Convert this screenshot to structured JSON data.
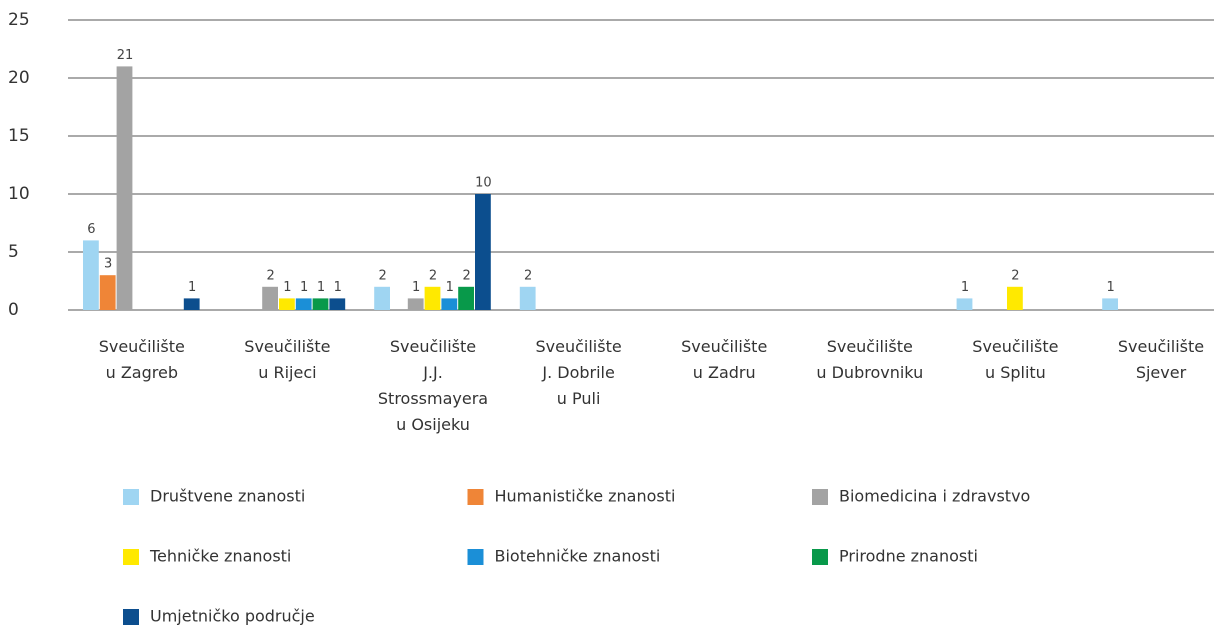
{
  "chart_data": {
    "type": "bar",
    "categories": [
      [
        "Sveučilište",
        "u Zagreb"
      ],
      [
        "Sveučilište",
        "u Rijeci"
      ],
      [
        "Sveučilište",
        "J.J.",
        "Strossmayera",
        "u Osijeku"
      ],
      [
        "Sveučilište",
        "J. Dobrile",
        "u Puli"
      ],
      [
        "Sveučilište",
        "u Zadru"
      ],
      [
        "Sveučilište",
        "u Dubrovniku"
      ],
      [
        "Sveučilište",
        "u Splitu"
      ],
      [
        "Sveučilište",
        "Sjever"
      ]
    ],
    "series": [
      {
        "name": "Društvene znanosti",
        "color": "#9fd5f2",
        "values": [
          6,
          null,
          2,
          2,
          null,
          null,
          1,
          1
        ]
      },
      {
        "name": "Humanističke znanosti",
        "color": "#ef8537",
        "values": [
          3,
          null,
          null,
          null,
          null,
          null,
          null,
          null
        ]
      },
      {
        "name": "Biomedicina i zdravstvo",
        "color": "#a3a3a3",
        "values": [
          21,
          2,
          1,
          null,
          null,
          null,
          null,
          null
        ]
      },
      {
        "name": "Tehničke znanosti",
        "color": "#ffe900",
        "values": [
          null,
          1,
          2,
          null,
          null,
          null,
          2,
          null
        ]
      },
      {
        "name": "Biotehničke znanosti",
        "color": "#1b8fd7",
        "values": [
          null,
          1,
          1,
          null,
          null,
          null,
          null,
          null
        ]
      },
      {
        "name": "Prirodne znanosti",
        "color": "#08994a",
        "values": [
          null,
          1,
          2,
          null,
          null,
          null,
          null,
          null
        ]
      },
      {
        "name": "Umjetničko područje",
        "color": "#0c4e8e",
        "values": [
          1,
          1,
          10,
          null,
          null,
          null,
          null,
          null
        ]
      }
    ],
    "ylim": [
      0,
      25
    ],
    "yticks": [
      0,
      5,
      10,
      15,
      20,
      25
    ],
    "grid": true
  }
}
